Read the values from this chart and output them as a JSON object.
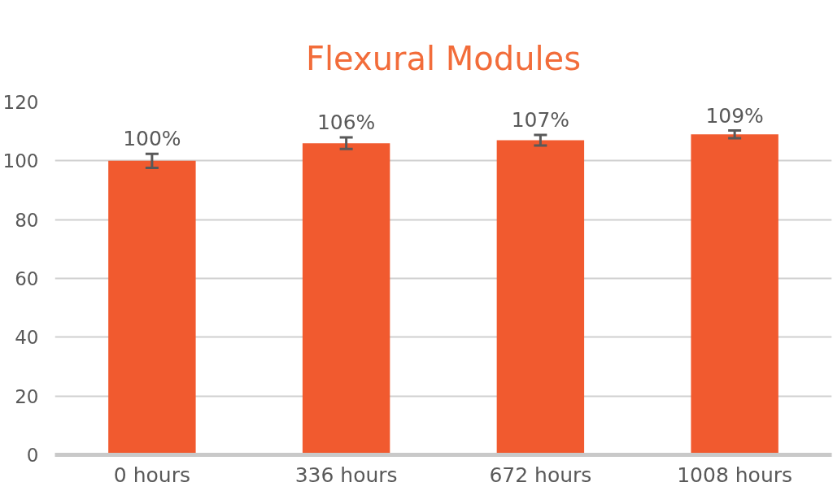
{
  "chart_data": {
    "type": "bar",
    "title": "Flexural Modules",
    "categories": [
      "0 hours",
      "336 hours",
      "672 hours",
      "1008 hours"
    ],
    "values": [
      100,
      106,
      107,
      109
    ],
    "errors": [
      2.4,
      2.0,
      1.8,
      1.3
    ],
    "value_labels": [
      "100%",
      "106%",
      "107%",
      "109%"
    ],
    "color": "#f15a2f",
    "ylim": [
      0,
      120
    ],
    "yticks": [
      0,
      20,
      40,
      60,
      80,
      100,
      120
    ],
    "grid": "y"
  }
}
